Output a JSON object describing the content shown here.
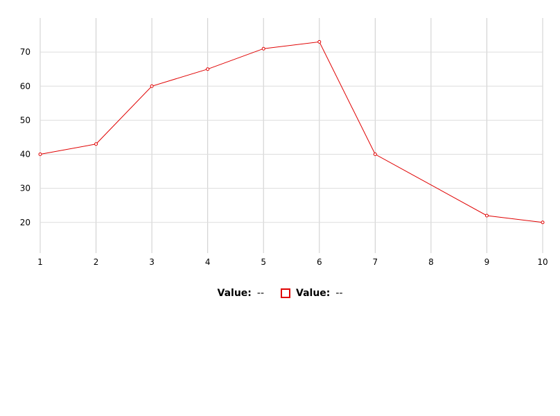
{
  "chart_data": {
    "type": "line",
    "x": [
      1,
      2,
      3,
      4,
      5,
      6,
      7,
      8,
      9,
      10
    ],
    "series": [
      {
        "values": [
          40,
          43,
          60,
          65,
          71,
          73,
          40,
          null,
          22,
          20
        ],
        "color": "#e00000"
      }
    ],
    "xticks": [
      "1",
      "2",
      "3",
      "4",
      "5",
      "6",
      "7",
      "8",
      "9",
      "10"
    ],
    "yticks": [
      "20",
      "30",
      "40",
      "50",
      "60",
      "70"
    ],
    "ylim": [
      11,
      80
    ],
    "xlim": [
      1,
      10
    ],
    "grid": true,
    "title": "",
    "xlabel": "",
    "ylabel": ""
  },
  "legend": {
    "items": [
      {
        "label": "Value:",
        "value": "--"
      },
      {
        "label": "Value:",
        "value": "--"
      }
    ]
  },
  "colors": {
    "series": "#e00000",
    "grid": "#dddddd",
    "grid_vertical": "#cccccc"
  }
}
